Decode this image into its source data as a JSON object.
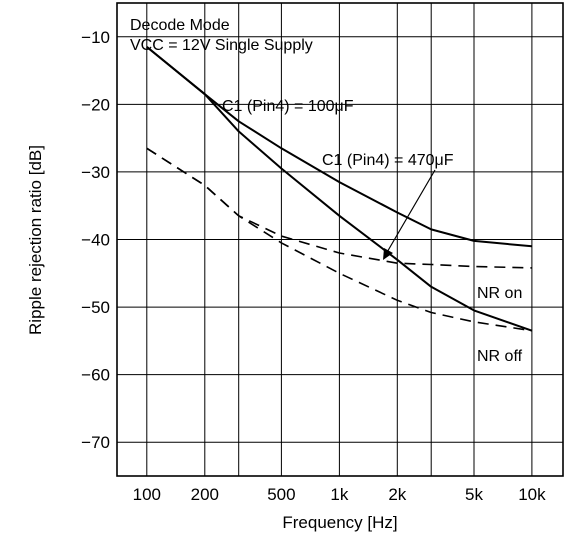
{
  "chart_data": {
    "type": "line",
    "title": "",
    "xlabel": "Frequency  [Hz]",
    "ylabel": "Ripple rejection ratio  [dB]",
    "x_scale": "log",
    "xlim": [
      70,
      14500
    ],
    "ylim": [
      -75,
      -5
    ],
    "grid": true,
    "x_ticks": [
      100,
      200,
      500,
      1000,
      2000,
      5000,
      10000
    ],
    "x_tick_labels": [
      "100",
      "200",
      "500",
      "1k",
      "2k",
      "5k",
      "10k"
    ],
    "x_gridlines": [
      100,
      200,
      300,
      500,
      1000,
      2000,
      3000,
      5000,
      10000
    ],
    "y_ticks": [
      -10,
      -20,
      -30,
      -40,
      -50,
      -60,
      -70
    ],
    "y_tick_labels": [
      "−10",
      "−20",
      "−30",
      "−40",
      "−50",
      "−60",
      "−70"
    ],
    "conditions": [
      "Decode Mode",
      "VCC = 12V Single Supply"
    ],
    "annotations": [
      {
        "text": "C1 (Pin4) = 100μF"
      },
      {
        "text": "C1 (Pin4) = 470μF"
      },
      {
        "text": "NR on"
      },
      {
        "text": "NR off"
      }
    ],
    "series": [
      {
        "style": "solid",
        "x": [
          100,
          200,
          300,
          500,
          1000,
          2000,
          3000,
          5000,
          10000
        ],
        "y": [
          -11.5,
          -18.5,
          -22.5,
          -26.5,
          -31.5,
          -36,
          -38.5,
          -40.2,
          -41
        ]
      },
      {
        "style": "solid",
        "x": [
          100,
          200,
          300,
          500,
          1000,
          2000,
          3000,
          5000,
          10000
        ],
        "y": [
          -11.5,
          -18.5,
          -24,
          -29.5,
          -36.5,
          -43,
          -47,
          -50.5,
          -53.5
        ]
      },
      {
        "style": "dashed",
        "x": [
          100,
          200,
          300,
          500,
          1000,
          2000,
          3000,
          5000,
          10000
        ],
        "y": [
          -26.5,
          -32,
          -36.5,
          -39.5,
          -42,
          -43.5,
          -43.7,
          -44,
          -44.2
        ]
      },
      {
        "style": "dashed",
        "x": [
          100,
          200,
          300,
          500,
          1000,
          2000,
          3000,
          5000,
          10000
        ],
        "y": [
          -26.5,
          -32,
          -36.5,
          -40.5,
          -45,
          -49,
          -50.8,
          -52.2,
          -53.5
        ]
      }
    ]
  }
}
